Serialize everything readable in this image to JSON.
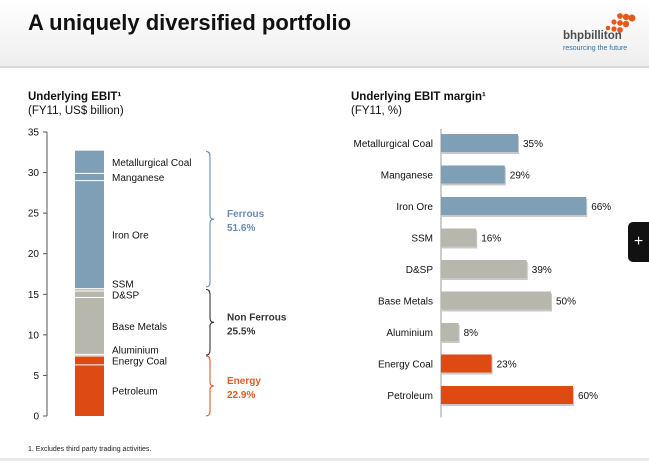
{
  "header": {
    "title": "A uniquely diversified portfolio",
    "logo_name": "bhpbilliton",
    "logo_tagline": "resourcing the future"
  },
  "colors": {
    "steel": "#7f9fb6",
    "grey": "#b8b7ae",
    "orange": "#dd4a14",
    "ferrous_text": "#6b8bb2",
    "nonferrous_text": "#333333",
    "energy_text": "#e05c20"
  },
  "footnote": "1.   Excludes third party trading activities.",
  "side_tab_glyph": "+",
  "chart_data": [
    {
      "type": "bar",
      "stacked": true,
      "title": "Underlying EBIT¹",
      "subtitle": "(FY11, US$ billion)",
      "ylim": [
        0,
        35
      ],
      "yticks": [
        0,
        5,
        10,
        15,
        20,
        25,
        30,
        35
      ],
      "ytick_labels": [
        "0",
        "5",
        "10",
        "15",
        "20",
        "25",
        "30",
        "35"
      ],
      "segments": [
        {
          "name": "Petroleum",
          "value": 6.3,
          "color": "#dd4a14"
        },
        {
          "name": "Energy Coal",
          "value": 1.1,
          "color": "#dd4a14"
        },
        {
          "name": "Aluminium",
          "value": 0.2,
          "color": "#b8b7ae"
        },
        {
          "name": "Base Metals",
          "value": 7.0,
          "color": "#b8b7ae"
        },
        {
          "name": "D&SP",
          "value": 0.8,
          "color": "#b8b7ae"
        },
        {
          "name": "SSM",
          "value": 0.3,
          "color": "#b8b7ae"
        },
        {
          "name": "Iron Ore",
          "value": 13.3,
          "color": "#7f9fb6"
        },
        {
          "name": "Manganese",
          "value": 0.9,
          "color": "#7f9fb6"
        },
        {
          "name": "Metallurgical Coal",
          "value": 2.8,
          "color": "#7f9fb6"
        }
      ],
      "groups": [
        {
          "name": "Ferrous",
          "share": "51.6%",
          "from": 15.9,
          "to": 32.6,
          "color": "#6b8bb2"
        },
        {
          "name": "Non Ferrous",
          "share": "25.5%",
          "from": 7.5,
          "to": 15.6,
          "color": "#333333"
        },
        {
          "name": "Energy",
          "share": "22.9%",
          "from": 0,
          "to": 7.4,
          "color": "#e05c20"
        }
      ]
    },
    {
      "type": "bar",
      "orientation": "horizontal",
      "title": "Underlying EBIT margin¹",
      "subtitle": "(FY11, %)",
      "xlim": [
        0,
        100
      ],
      "categories": [
        "Metallurgical Coal",
        "Manganese",
        "Iron Ore",
        "SSM",
        "D&SP",
        "Base Metals",
        "Aluminium",
        "Energy Coal",
        "Petroleum"
      ],
      "values": [
        35,
        29,
        66,
        16,
        39,
        50,
        8,
        23,
        60
      ],
      "labels": [
        "35%",
        "29%",
        "66%",
        "16%",
        "39%",
        "50%",
        "8%",
        "23%",
        "60%"
      ],
      "colors": [
        "#7f9fb6",
        "#7f9fb6",
        "#7f9fb6",
        "#b8b7ae",
        "#b8b7ae",
        "#b8b7ae",
        "#b8b7ae",
        "#dd4a14",
        "#dd4a14"
      ]
    }
  ]
}
